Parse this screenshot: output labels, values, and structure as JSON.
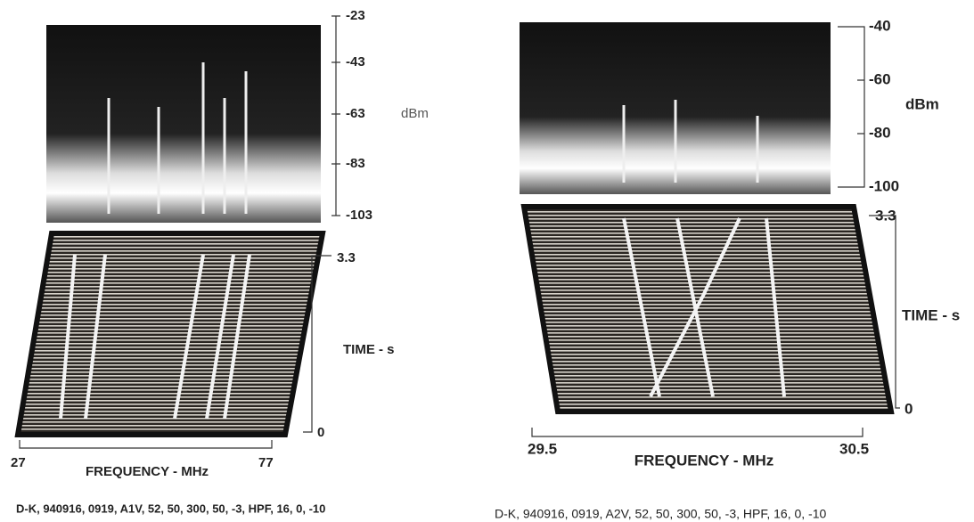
{
  "panels": [
    {
      "power_ticks": [
        "-23",
        "-43",
        "-63",
        "-83",
        "-103"
      ],
      "power_unit": "dBm",
      "time_ticks": [
        "3.3",
        "0"
      ],
      "time_label": "TIME - s",
      "freq_ticks": [
        "27",
        "77"
      ],
      "freq_label": "FREQUENCY - MHz",
      "caption": "D-K, 940916, 0919, A1V, 52, 50, 300, 50, -3, HPF, 16, 0, -10"
    },
    {
      "power_ticks": [
        "-40",
        "-60",
        "-80",
        "-100"
      ],
      "power_unit": "dBm",
      "time_ticks": [
        "3.3",
        "0"
      ],
      "time_label": "TIME - s",
      "freq_ticks": [
        "29.5",
        "30.5"
      ],
      "freq_label": "FREQUENCY - MHz",
      "caption": "D-K, 940916, 0919, A2V, 52, 50, 300, 50, -3, HPF, 16, 0, -10"
    }
  ]
}
